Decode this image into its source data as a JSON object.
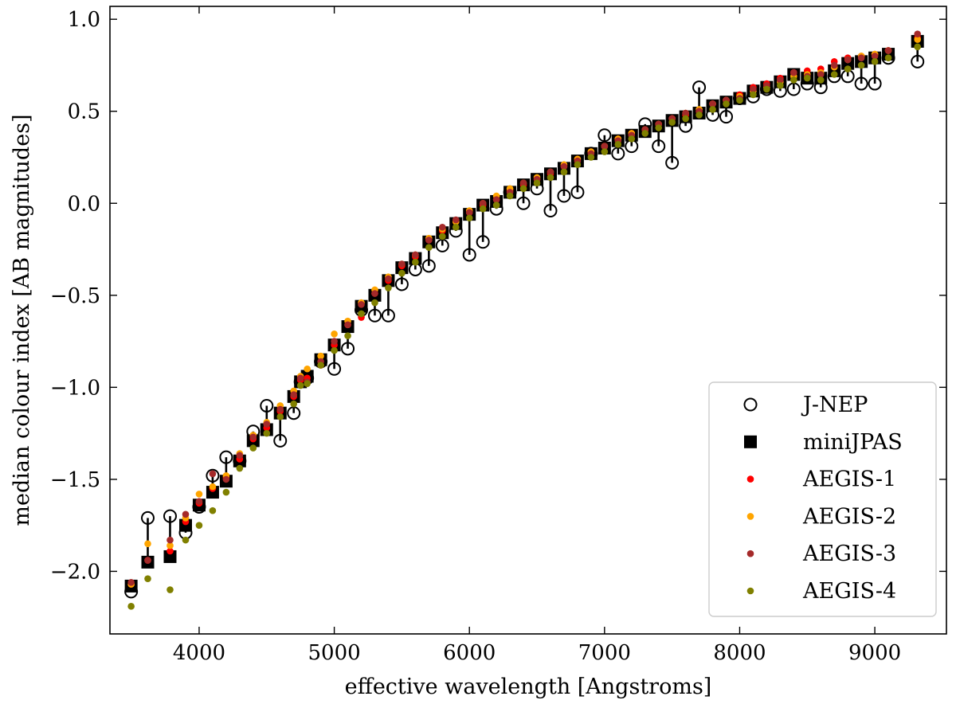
{
  "chart_data": {
    "type": "scatter",
    "xlabel": "effective wavelength [Angstroms]",
    "ylabel": "median colour index [AB magnitudes]",
    "xlim": [
      3340,
      9530
    ],
    "ylim": [
      -2.34,
      1.07
    ],
    "xticks": [
      4000,
      5000,
      6000,
      7000,
      8000,
      9000
    ],
    "yticks": [
      -2.0,
      -1.5,
      -1.0,
      -0.5,
      0.0,
      0.5,
      1.0
    ],
    "ytick_labels": [
      "−2.0",
      "−1.5",
      "−1.0",
      "−0.5",
      "0.0",
      "0.5",
      "1.0"
    ],
    "grid": false,
    "legend_position": "bottom-right",
    "x": [
      3497,
      3620,
      3785,
      3900,
      4000,
      4100,
      4200,
      4300,
      4400,
      4500,
      4600,
      4700,
      4750,
      4800,
      4900,
      5000,
      5100,
      5200,
      5300,
      5400,
      5500,
      5600,
      5700,
      5800,
      5900,
      6000,
      6100,
      6200,
      6300,
      6400,
      6500,
      6600,
      6700,
      6800,
      6900,
      7000,
      7100,
      7200,
      7300,
      7400,
      7500,
      7600,
      7700,
      7800,
      7900,
      8000,
      8100,
      8200,
      8300,
      8400,
      8500,
      8600,
      8700,
      8800,
      8900,
      9000,
      9100,
      9316
    ],
    "series": [
      {
        "name": "J-NEP",
        "marker": "open-circle",
        "color": "#000000",
        "values": [
          -2.11,
          -1.71,
          -1.7,
          -1.79,
          -1.65,
          -1.48,
          -1.38,
          -1.4,
          -1.24,
          -1.1,
          -1.29,
          -1.14,
          -0.97,
          -0.95,
          -0.86,
          -0.9,
          -0.79,
          -0.58,
          -0.61,
          -0.61,
          -0.44,
          -0.36,
          -0.34,
          -0.23,
          -0.15,
          -0.28,
          -0.21,
          -0.03,
          0.06,
          0.0,
          0.08,
          -0.04,
          0.04,
          0.06,
          0.27,
          0.37,
          0.27,
          0.31,
          0.43,
          0.31,
          0.22,
          0.42,
          0.63,
          0.48,
          0.47,
          0.57,
          0.58,
          0.62,
          0.61,
          0.62,
          0.65,
          0.63,
          0.69,
          0.69,
          0.65,
          0.65,
          0.79,
          0.77
        ]
      },
      {
        "name": "miniJPAS",
        "marker": "filled-square",
        "color": "#000000",
        "values": [
          -2.08,
          -1.95,
          -1.92,
          -1.75,
          -1.64,
          -1.57,
          -1.51,
          -1.4,
          -1.29,
          -1.23,
          -1.14,
          -1.05,
          -0.97,
          -0.94,
          -0.85,
          -0.77,
          -0.67,
          -0.56,
          -0.5,
          -0.42,
          -0.35,
          -0.3,
          -0.21,
          -0.16,
          -0.11,
          -0.06,
          -0.01,
          0.01,
          0.06,
          0.1,
          0.13,
          0.16,
          0.19,
          0.23,
          0.27,
          0.3,
          0.34,
          0.37,
          0.39,
          0.42,
          0.45,
          0.47,
          0.49,
          0.53,
          0.55,
          0.57,
          0.61,
          0.63,
          0.66,
          0.7,
          0.68,
          0.68,
          0.72,
          0.76,
          0.77,
          0.79,
          0.81,
          0.88
        ]
      },
      {
        "name": "AEGIS-1",
        "marker": "dot",
        "color": "#ff0000",
        "values": [
          -2.07,
          -1.94,
          -1.89,
          -1.73,
          -1.63,
          -1.55,
          -1.49,
          -1.39,
          -1.28,
          -1.22,
          -1.13,
          -1.05,
          -0.96,
          -0.95,
          -0.88,
          -0.77,
          -0.66,
          -0.62,
          -0.49,
          -0.42,
          -0.34,
          -0.29,
          -0.2,
          -0.15,
          -0.1,
          -0.05,
          -0.01,
          0.02,
          0.07,
          0.1,
          0.13,
          0.16,
          0.2,
          0.24,
          0.28,
          0.31,
          0.35,
          0.38,
          0.4,
          0.43,
          0.46,
          0.48,
          0.5,
          0.54,
          0.56,
          0.59,
          0.63,
          0.65,
          0.68,
          0.71,
          0.72,
          0.73,
          0.77,
          0.79,
          0.8,
          0.81,
          0.83,
          0.9
        ]
      },
      {
        "name": "AEGIS-2",
        "marker": "dot",
        "color": "#ffa500",
        "values": [
          -2.07,
          -1.85,
          -1.86,
          -1.71,
          -1.58,
          -1.54,
          -1.48,
          -1.36,
          -1.26,
          -1.19,
          -1.1,
          -1.02,
          -0.94,
          -0.9,
          -0.83,
          -0.71,
          -0.64,
          -0.54,
          -0.47,
          -0.4,
          -0.33,
          -0.28,
          -0.19,
          -0.14,
          -0.1,
          -0.04,
          0.0,
          0.04,
          0.08,
          0.11,
          0.14,
          0.17,
          0.21,
          0.24,
          0.28,
          0.31,
          0.35,
          0.38,
          0.4,
          0.43,
          0.46,
          0.49,
          0.51,
          0.54,
          0.56,
          0.58,
          0.61,
          0.63,
          0.66,
          0.69,
          0.7,
          0.71,
          0.74,
          0.78,
          0.8,
          0.81,
          0.83,
          0.89
        ]
      },
      {
        "name": "AEGIS-3",
        "marker": "dot",
        "color": "#a52a2a",
        "values": [
          -2.06,
          -1.94,
          -1.83,
          -1.69,
          -1.62,
          -1.47,
          -1.5,
          -1.37,
          -1.27,
          -1.2,
          -1.12,
          -1.04,
          -0.95,
          -0.97,
          -0.86,
          -0.75,
          -0.66,
          -0.55,
          -0.49,
          -0.41,
          -0.33,
          -0.28,
          -0.2,
          -0.13,
          -0.09,
          -0.05,
          0.0,
          0.02,
          0.06,
          0.11,
          0.13,
          0.17,
          0.2,
          0.23,
          0.27,
          0.31,
          0.34,
          0.37,
          0.4,
          0.43,
          0.46,
          0.49,
          0.5,
          0.54,
          0.56,
          0.57,
          0.62,
          0.64,
          0.67,
          0.71,
          0.69,
          0.7,
          0.75,
          0.78,
          0.79,
          0.8,
          0.83,
          0.92
        ]
      },
      {
        "name": "AEGIS-4",
        "marker": "dot",
        "color": "#808000",
        "values": [
          -2.19,
          -2.04,
          -2.1,
          -1.83,
          -1.75,
          -1.67,
          -1.57,
          -1.44,
          -1.33,
          -1.25,
          -1.16,
          -1.09,
          -0.99,
          -0.98,
          -0.88,
          -0.8,
          -0.72,
          -0.6,
          -0.54,
          -0.46,
          -0.38,
          -0.32,
          -0.24,
          -0.18,
          -0.13,
          -0.08,
          -0.03,
          -0.01,
          0.04,
          0.08,
          0.11,
          0.14,
          0.17,
          0.21,
          0.25,
          0.28,
          0.32,
          0.35,
          0.38,
          0.41,
          0.44,
          0.46,
          0.48,
          0.51,
          0.54,
          0.56,
          0.59,
          0.62,
          0.64,
          0.67,
          0.68,
          0.67,
          0.7,
          0.73,
          0.75,
          0.77,
          0.79,
          0.85
        ]
      }
    ]
  }
}
